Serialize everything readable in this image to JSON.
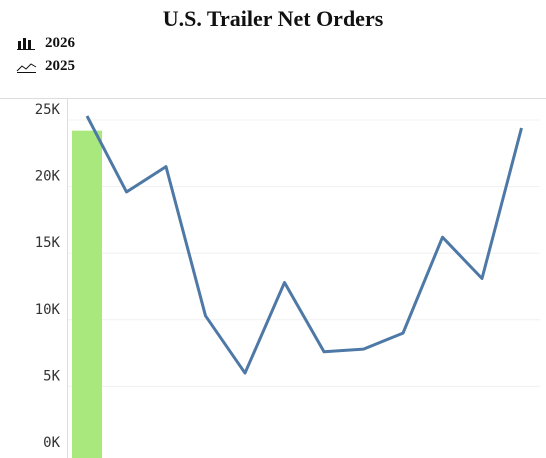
{
  "chart_data": {
    "type": "bar+line",
    "title": "U.S. Trailer Net Orders",
    "legend_position": "top-left",
    "grid": true,
    "ylim": [
      0,
      26000
    ],
    "yticks": [
      {
        "value": 0,
        "label": "0K"
      },
      {
        "value": 5000,
        "label": "5K"
      },
      {
        "value": 10000,
        "label": "10K"
      },
      {
        "value": 15000,
        "label": "15K"
      },
      {
        "value": 20000,
        "label": "20K"
      },
      {
        "value": 25000,
        "label": "25K"
      }
    ],
    "x_count": 12,
    "series": [
      {
        "name": "2026",
        "type": "bar",
        "color": "#a8e87c",
        "icon": "bar-chart-icon",
        "values": [
          24200
        ]
      },
      {
        "name": "2025",
        "type": "line",
        "color": "#4e79a7",
        "icon": "line-chart-icon",
        "values": [
          25300,
          19600,
          21500,
          10300,
          6000,
          12800,
          7600,
          7800,
          9000,
          16200,
          13100,
          24400
        ]
      }
    ]
  }
}
